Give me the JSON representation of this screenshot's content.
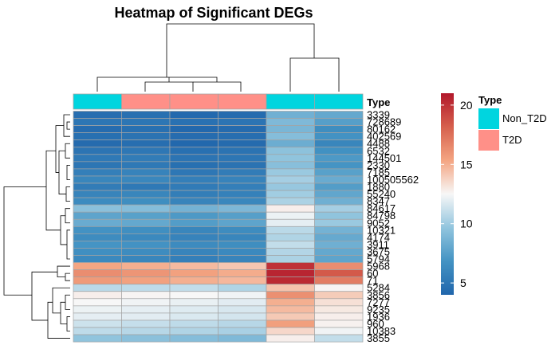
{
  "chart_data": {
    "type": "heatmap",
    "title": "Heatmap of Significant DEGs",
    "annotation_label": "Type",
    "annotation_legend_title": "Type",
    "annotation_levels": [
      {
        "name": "Non_T2D",
        "color": "#00D5DF"
      },
      {
        "name": "T2D",
        "color": "#FF9088"
      }
    ],
    "column_types": [
      "Non_T2D",
      "T2D",
      "T2D",
      "T2D",
      "Non_T2D",
      "Non_T2D"
    ],
    "rows": [
      "3339",
      "728689",
      "80162",
      "402569",
      "4488",
      "6532",
      "144501",
      "2330",
      "7185",
      "100505562",
      "1880",
      "55240",
      "8347",
      "84617",
      "84798",
      "9052",
      "10321",
      "4174",
      "3911",
      "3675",
      "5794",
      "5968",
      "60",
      "71",
      "5284",
      "3856",
      "7277",
      "9235",
      "1936",
      "960",
      "10383",
      "3855"
    ],
    "values": [
      [
        4.5,
        4.6,
        4.2,
        4.4,
        8.5,
        8.0
      ],
      [
        5.0,
        5.0,
        4.7,
        4.9,
        9.0,
        7.5
      ],
      [
        4.4,
        4.6,
        4.1,
        4.3,
        8.8,
        6.5
      ],
      [
        4.6,
        4.8,
        4.4,
        4.5,
        9.2,
        6.8
      ],
      [
        4.3,
        4.5,
        4.1,
        4.3,
        8.3,
        6.0
      ],
      [
        4.9,
        5.1,
        4.6,
        4.8,
        9.5,
        6.7
      ],
      [
        5.2,
        5.4,
        4.9,
        5.0,
        9.6,
        7.2
      ],
      [
        5.0,
        5.2,
        4.6,
        4.8,
        9.3,
        6.9
      ],
      [
        5.6,
        5.8,
        5.1,
        5.4,
        9.9,
        7.6
      ],
      [
        6.0,
        6.1,
        5.6,
        5.8,
        10.2,
        8.2
      ],
      [
        5.4,
        5.2,
        5.3,
        5.6,
        9.8,
        7.4
      ],
      [
        5.9,
        6.0,
        5.5,
        5.7,
        10.1,
        7.9
      ],
      [
        6.3,
        6.5,
        5.9,
        6.1,
        10.4,
        8.4
      ],
      [
        9.4,
        9.2,
        8.6,
        8.9,
        12.8,
        10.2
      ],
      [
        7.8,
        7.6,
        7.2,
        7.5,
        12.2,
        9.6
      ],
      [
        8.2,
        8.0,
        7.4,
        7.8,
        12.0,
        9.9
      ],
      [
        6.8,
        6.6,
        6.0,
        6.4,
        10.8,
        8.6
      ],
      [
        6.4,
        6.2,
        5.8,
        6.0,
        10.5,
        8.1
      ],
      [
        6.9,
        6.8,
        6.3,
        6.5,
        11.0,
        8.4
      ],
      [
        6.6,
        6.4,
        5.9,
        6.2,
        10.6,
        8.0
      ],
      [
        6.2,
        6.0,
        5.6,
        5.9,
        10.4,
        7.8
      ],
      [
        15.3,
        15.0,
        14.6,
        14.2,
        20.0,
        16.3
      ],
      [
        16.3,
        16.0,
        15.5,
        15.1,
        20.5,
        18.4
      ],
      [
        15.8,
        15.5,
        15.0,
        14.7,
        20.3,
        17.0
      ],
      [
        10.8,
        10.9,
        11.0,
        10.5,
        14.3,
        12.6
      ],
      [
        12.8,
        12.6,
        12.5,
        12.3,
        16.2,
        14.0
      ],
      [
        12.5,
        12.3,
        12.1,
        11.9,
        15.0,
        13.3
      ],
      [
        12.2,
        12.0,
        11.8,
        11.6,
        14.6,
        13.0
      ],
      [
        12.0,
        11.9,
        11.7,
        11.5,
        14.1,
        12.8
      ],
      [
        11.3,
        11.1,
        10.9,
        10.7,
        15.6,
        12.7
      ],
      [
        10.9,
        10.7,
        10.5,
        10.3,
        13.6,
        12.3
      ],
      [
        9.6,
        9.4,
        9.2,
        9.0,
        12.8,
        11.0
      ]
    ],
    "colorbar": {
      "min": 4,
      "max": 21,
      "ticks": [
        5,
        10,
        15,
        20
      ]
    },
    "palette": [
      "#2166AC",
      "#4393C3",
      "#92C5DE",
      "#F7F7F7",
      "#F4A582",
      "#D6604D",
      "#B2182B"
    ],
    "grid_color": "#A3A3A3"
  }
}
